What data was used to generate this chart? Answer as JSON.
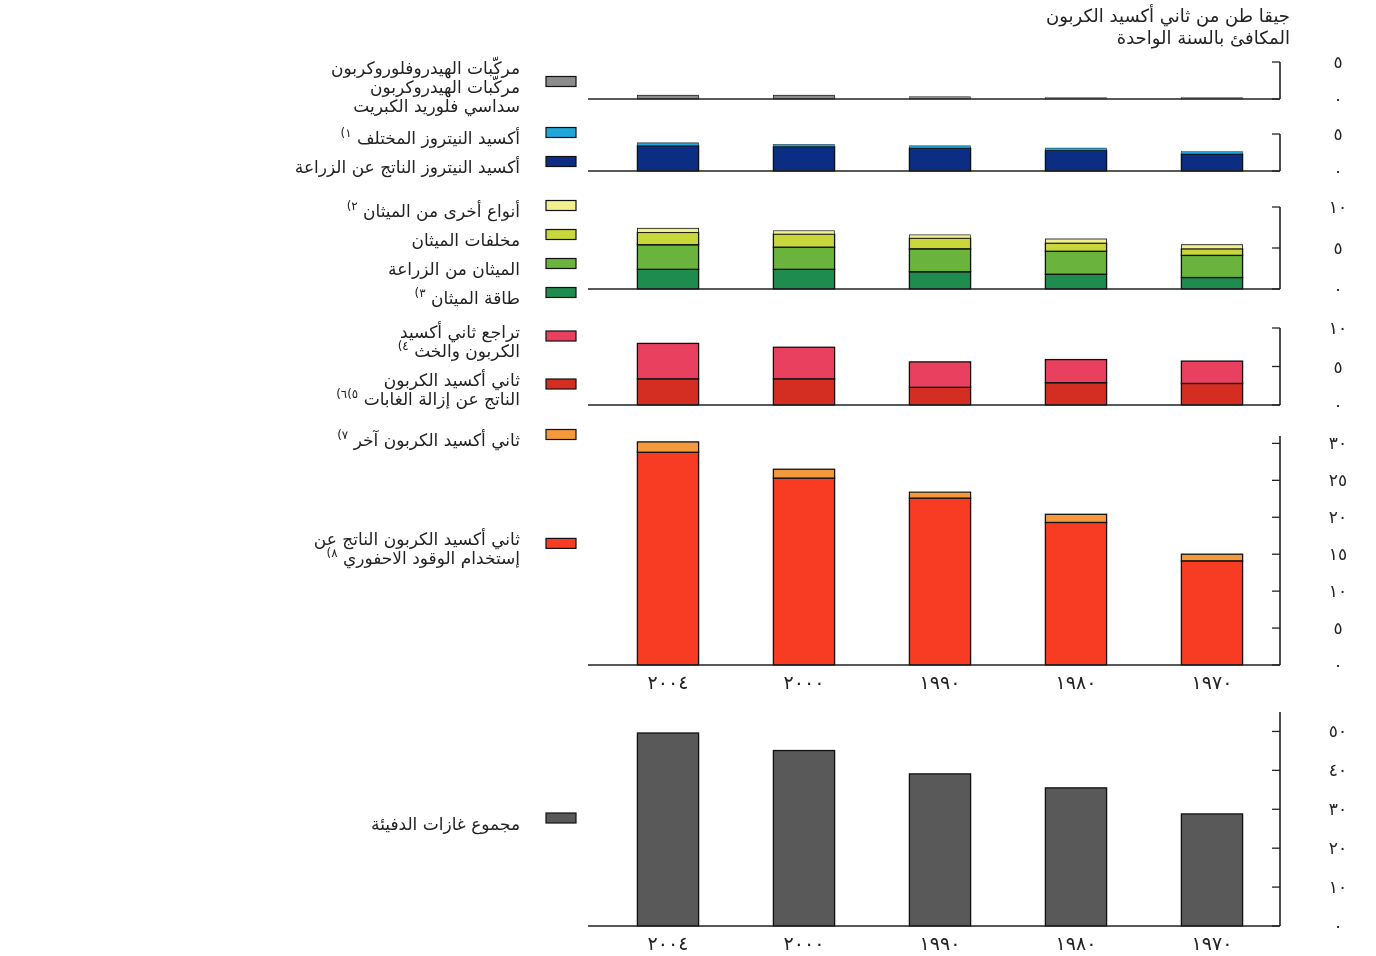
{
  "chart_data": [
    {
      "type": "bar",
      "title": "جيقا طن من ثاني أكسيد الكربون\nالمكافئ بالسنة الواحدة",
      "categories": [
        "٢٠٠٤",
        "٢٠٠٠",
        "١٩٩٠",
        "١٩٨٠",
        "١٩٧٠"
      ],
      "ylim": [
        0,
        5
      ],
      "yticks": [
        {
          "value": 0,
          "label": "٠"
        },
        {
          "value": 5,
          "label": "٥"
        }
      ],
      "tick_labels": "y",
      "legend": "left",
      "series": [
        {
          "name": "مركّبات الهيدروفلوروكربون\nمركّبات الهيدروكربون\nسداسي فلوريد الكبريت",
          "color": "#8c8c8c",
          "values": [
            0.5,
            0.5,
            0.3,
            0.2,
            0.2
          ]
        }
      ]
    },
    {
      "type": "bar",
      "stacked": true,
      "categories": [
        "٢٠٠٤",
        "٢٠٠٠",
        "١٩٩٠",
        "١٩٨٠",
        "١٩٧٠"
      ],
      "ylim": [
        0,
        5
      ],
      "yticks": [
        {
          "value": 0,
          "label": "٠"
        },
        {
          "value": 5,
          "label": "٥"
        }
      ],
      "tick_labels": "y",
      "legend": "left",
      "series": [
        {
          "name": "أكسيد النيتروز الناتج عن الزراعة",
          "color": "#0b2d83",
          "values": [
            3.4,
            3.3,
            3.1,
            2.8,
            2.3
          ]
        },
        {
          "name": "أكسيد النيتروز المختلف $^{١)}$",
          "color": "#1ea7d8",
          "values": [
            0.4,
            0.3,
            0.3,
            0.3,
            0.3
          ]
        }
      ]
    },
    {
      "type": "bar",
      "stacked": true,
      "categories": [
        "٢٠٠٤",
        "٢٠٠٠",
        "١٩٩٠",
        "١٩٨٠",
        "١٩٧٠"
      ],
      "ylim": [
        0,
        10
      ],
      "yticks": [
        {
          "value": 0,
          "label": "٠"
        },
        {
          "value": 5,
          "label": "٥"
        },
        {
          "value": 10,
          "label": "١٠"
        }
      ],
      "tick_labels": "y",
      "legend": "left",
      "series": [
        {
          "name": "طاقة الميثان $^{٣)}$",
          "color": "#1e8c4e",
          "values": [
            2.4,
            2.4,
            2.1,
            1.8,
            1.4
          ]
        },
        {
          "name": "الميثان من الزراعة",
          "color": "#6ab43e",
          "values": [
            3.0,
            2.7,
            2.8,
            2.8,
            2.7
          ]
        },
        {
          "name": "مخلفات الميثان",
          "color": "#c8d83c",
          "values": [
            1.5,
            1.6,
            1.3,
            1.0,
            0.8
          ]
        },
        {
          "name": "أنواع أخرى من الميثان $^{٢)}$",
          "color": "#f2ef8f",
          "values": [
            0.5,
            0.4,
            0.4,
            0.5,
            0.5
          ]
        }
      ]
    },
    {
      "type": "bar",
      "stacked": true,
      "categories": [
        "٢٠٠٤",
        "٢٠٠٠",
        "١٩٩٠",
        "١٩٨٠",
        "١٩٧٠"
      ],
      "ylim": [
        0,
        10
      ],
      "yticks": [
        {
          "value": 0,
          "label": "٠"
        },
        {
          "value": 5,
          "label": "٥"
        },
        {
          "value": 10,
          "label": "١٠"
        }
      ],
      "tick_labels": "y",
      "legend": "left",
      "series": [
        {
          "name": "ثاني أكسيد الكربون\nالناتج عن إزالة الغابات $^{٥)٦)}$",
          "color": "#d42e22",
          "values": [
            3.4,
            3.4,
            2.3,
            2.9,
            2.8
          ]
        },
        {
          "name": "تراجع ثاني أكسيد\nالكربون والخث $^{٤)}$",
          "color": "#e8405e",
          "values": [
            4.6,
            4.1,
            3.3,
            3.0,
            2.9
          ]
        }
      ]
    },
    {
      "type": "bar",
      "stacked": true,
      "categories": [
        "٢٠٠٤",
        "٢٠٠٠",
        "١٩٩٠",
        "١٩٨٠",
        "١٩٧٠"
      ],
      "ylim": [
        0,
        31
      ],
      "yticks": [
        {
          "value": 0,
          "label": "٠"
        },
        {
          "value": 5,
          "label": "٥"
        },
        {
          "value": 10,
          "label": "١٠"
        },
        {
          "value": 15,
          "label": "١٥"
        },
        {
          "value": 20,
          "label": "٢٠"
        },
        {
          "value": 25,
          "label": "٢٥"
        },
        {
          "value": 30,
          "label": "٣٠"
        }
      ],
      "legend": "left",
      "series": [
        {
          "name": "ثاني أكسيد الكربون الناتج عن\nإستخدام الوقود الاحفوري $^{٨)}$",
          "color": "#f83c24",
          "values": [
            28.8,
            25.3,
            22.6,
            19.3,
            14.1
          ]
        },
        {
          "name": "ثاني أكسيد الكربون آخر $^{٧)}$",
          "color": "#f59a3c",
          "values": [
            1.4,
            1.2,
            0.8,
            1.1,
            0.9
          ]
        }
      ]
    },
    {
      "type": "bar",
      "categories": [
        "٢٠٠٤",
        "٢٠٠٠",
        "١٩٩٠",
        "١٩٨٠",
        "١٩٧٠"
      ],
      "ylim": [
        0,
        55
      ],
      "yticks": [
        {
          "value": 0,
          "label": "٠"
        },
        {
          "value": 10,
          "label": "١٠"
        },
        {
          "value": 20,
          "label": "٢٠"
        },
        {
          "value": 30,
          "label": "٣٠"
        },
        {
          "value": 40,
          "label": "٤٠"
        },
        {
          "value": 50,
          "label": "٥٠"
        }
      ],
      "legend": "left",
      "series": [
        {
          "name": "مجموع غازات الدفيئة",
          "color": "#595959",
          "values": [
            49.6,
            45.1,
            39.1,
            35.5,
            28.8
          ]
        }
      ]
    }
  ]
}
